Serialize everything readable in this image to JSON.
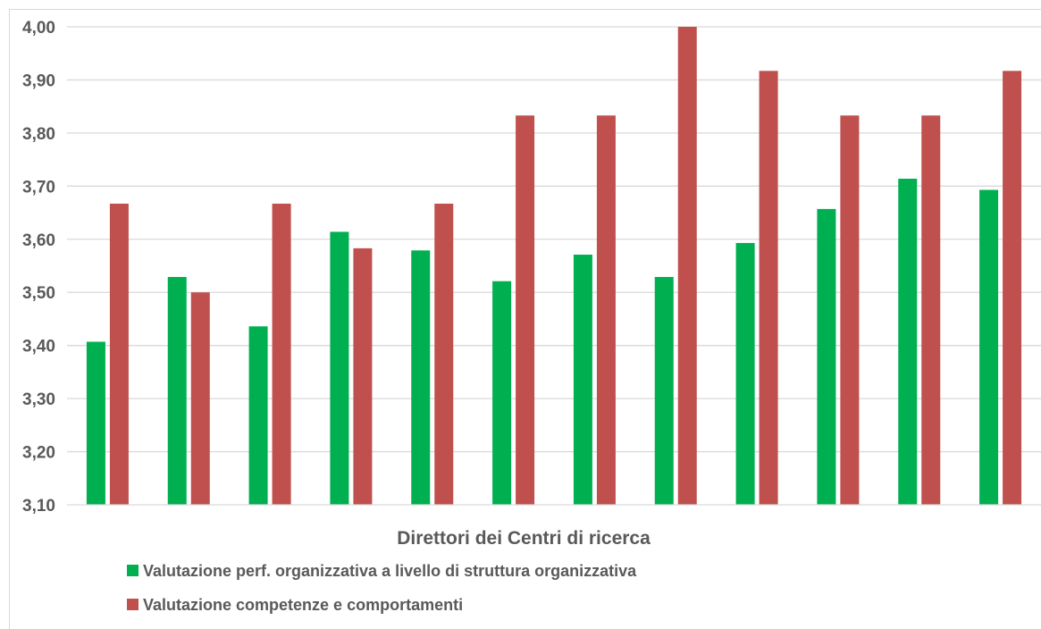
{
  "chart_data": {
    "type": "bar",
    "title": "",
    "xlabel": "Direttori dei Centri di ricerca",
    "ylabel": "",
    "ylim": [
      3.1,
      4.0
    ],
    "yticks": [
      "3,10",
      "3,20",
      "3,30",
      "3,40",
      "3,50",
      "3,60",
      "3,70",
      "3,80",
      "3,90",
      "4,00"
    ],
    "grid": true,
    "legend_position": "bottom",
    "categories": [
      "",
      "",
      "",
      "",
      "",
      "",
      "",
      "",
      "",
      "",
      "",
      ""
    ],
    "series": [
      {
        "name": "Valutazione  perf. organizzativa  a livello di struttura organizzativa",
        "color": "#00b050",
        "values": [
          3.407,
          3.529,
          3.436,
          3.614,
          3.579,
          3.521,
          3.571,
          3.529,
          3.593,
          3.657,
          3.714,
          3.693
        ]
      },
      {
        "name": "Valutazione competenze e comportamenti",
        "color": "#c0504d",
        "values": [
          3.667,
          3.5,
          3.667,
          3.583,
          3.667,
          3.833,
          3.833,
          4.0,
          3.917,
          3.833,
          3.833,
          3.917
        ]
      }
    ]
  }
}
